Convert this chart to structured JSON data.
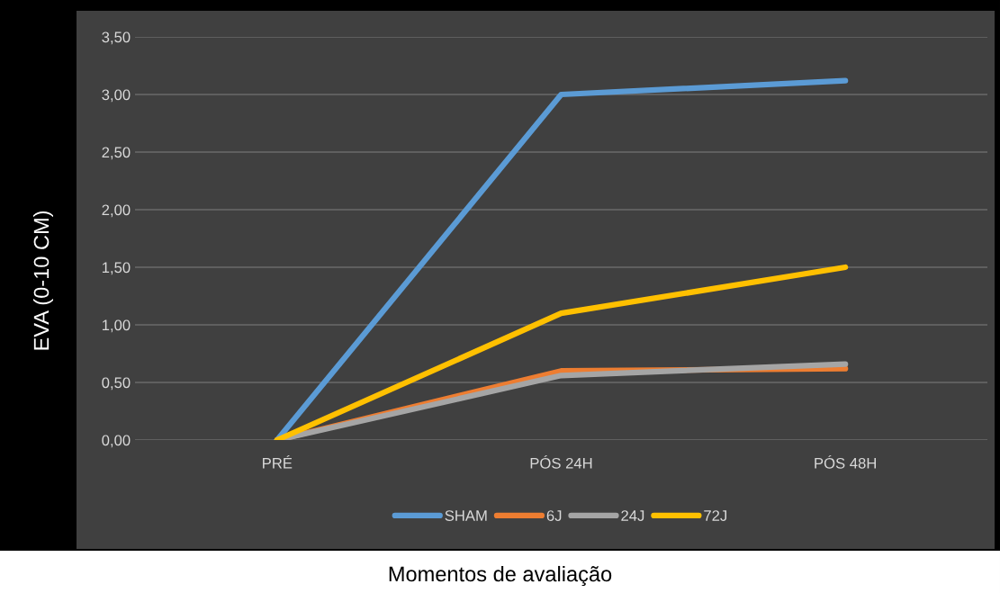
{
  "chart_data": {
    "type": "line",
    "xlabel": "Momentos de avaliação",
    "ylabel": "EVA (0-10 CM)",
    "categories": [
      "PRÉ",
      "PÓS 24H",
      "PÓS 48H"
    ],
    "series": [
      {
        "name": "SHAM",
        "color": "#5b9bd5",
        "values": [
          0,
          3.0,
          3.12
        ]
      },
      {
        "name": "6J",
        "color": "#ed7d31",
        "values": [
          0,
          0.6,
          0.62
        ]
      },
      {
        "name": "24J",
        "color": "#a5a5a5",
        "values": [
          0,
          0.56,
          0.66
        ]
      },
      {
        "name": "72J",
        "color": "#ffc000",
        "values": [
          0,
          1.1,
          1.5
        ]
      }
    ],
    "ylim": [
      0,
      3.5
    ],
    "yticks": [
      {
        "value": 0,
        "label": "0,00"
      },
      {
        "value": 0.5,
        "label": "0,50"
      },
      {
        "value": 1,
        "label": "1,00"
      },
      {
        "value": 1.5,
        "label": "1,50"
      },
      {
        "value": 2,
        "label": "2,00"
      },
      {
        "value": 2.5,
        "label": "2,50"
      },
      {
        "value": 3,
        "label": "3,00"
      },
      {
        "value": 3.5,
        "label": "3,50"
      }
    ],
    "grid": "y",
    "legend": "bottom",
    "marker": "none",
    "line_style": "solid"
  }
}
